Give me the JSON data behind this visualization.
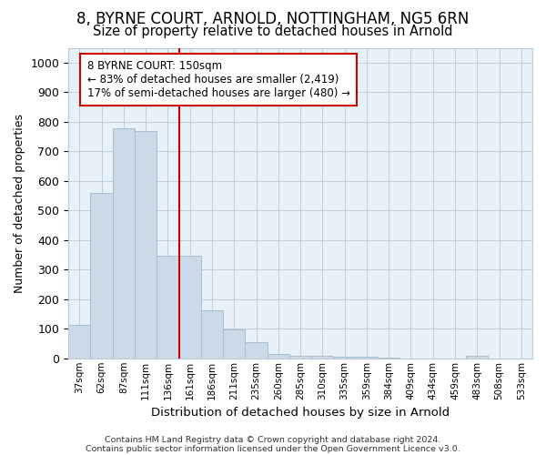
{
  "title1": "8, BYRNE COURT, ARNOLD, NOTTINGHAM, NG5 6RN",
  "title2": "Size of property relative to detached houses in Arnold",
  "xlabel": "Distribution of detached houses by size in Arnold",
  "ylabel": "Number of detached properties",
  "categories": [
    "37sqm",
    "62sqm",
    "87sqm",
    "111sqm",
    "136sqm",
    "161sqm",
    "186sqm",
    "211sqm",
    "235sqm",
    "260sqm",
    "285sqm",
    "310sqm",
    "335sqm",
    "359sqm",
    "384sqm",
    "409sqm",
    "434sqm",
    "459sqm",
    "483sqm",
    "508sqm",
    "533sqm"
  ],
  "values": [
    113,
    558,
    778,
    770,
    348,
    348,
    163,
    97,
    55,
    14,
    10,
    8,
    6,
    4,
    2,
    0,
    0,
    0,
    8,
    0,
    0
  ],
  "bar_color": "#ccd9e8",
  "bar_edge_color": "#a8bfce",
  "red_line_x": 4.5,
  "annotation_line1": "8 BYRNE COURT: 150sqm",
  "annotation_line2": "← 83% of detached houses are smaller (2,419)",
  "annotation_line3": "17% of semi-detached houses are larger (480) →",
  "annotation_box_color": "#ffffff",
  "annotation_box_edge": "#cc0000",
  "red_line_color": "#cc0000",
  "ylim": [
    0,
    1050
  ],
  "yticks": [
    0,
    100,
    200,
    300,
    400,
    500,
    600,
    700,
    800,
    900,
    1000
  ],
  "footer_line1": "Contains HM Land Registry data © Crown copyright and database right 2024.",
  "footer_line2": "Contains public sector information licensed under the Open Government Licence v3.0.",
  "title1_fontsize": 12,
  "title2_fontsize": 10.5,
  "background_color": "#ffffff",
  "plot_bg_color": "#e8f0f8"
}
